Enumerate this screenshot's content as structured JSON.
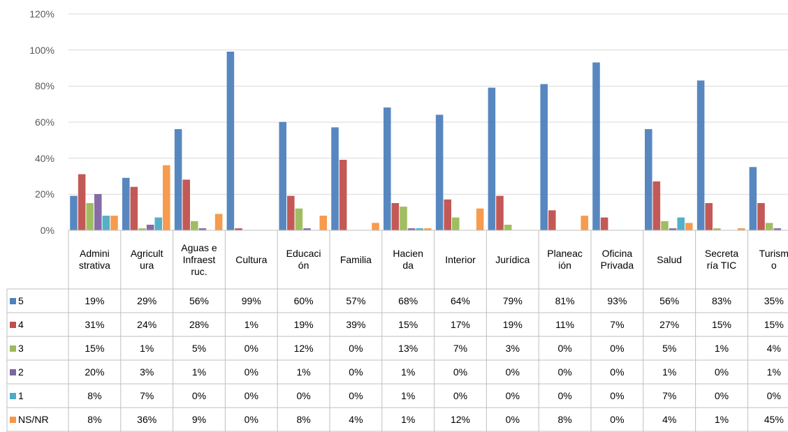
{
  "chart_data": {
    "type": "bar",
    "categories": [
      "Admini\nstrativa",
      "Agricult\nura",
      "Aguas e\nInfraest\nruc.",
      "Cultura",
      "Educaci\nón",
      "Familia",
      "Hacien\nda",
      "Interior",
      "Jurídica",
      "Planeac\nión",
      "Oficina\nPrivada",
      "Salud",
      "Secreta\nría TIC",
      "Turism\no"
    ],
    "series": [
      {
        "name": "5",
        "color": "#4f81bd",
        "values": [
          19,
          29,
          56,
          99,
          60,
          57,
          68,
          64,
          79,
          81,
          93,
          56,
          83,
          35
        ],
        "value_labels": [
          "19%",
          "29%",
          "56%",
          "99%",
          "60%",
          "57%",
          "68%",
          "64%",
          "79%",
          "81%",
          "93%",
          "56%",
          "83%",
          "35%"
        ]
      },
      {
        "name": "4",
        "color": "#c0504d",
        "values": [
          31,
          24,
          28,
          1,
          19,
          39,
          15,
          17,
          19,
          11,
          7,
          27,
          15,
          15
        ],
        "value_labels": [
          "31%",
          "24%",
          "28%",
          "1%",
          "19%",
          "39%",
          "15%",
          "17%",
          "19%",
          "11%",
          "7%",
          "27%",
          "15%",
          "15%"
        ]
      },
      {
        "name": "3",
        "color": "#9bbb59",
        "values": [
          15,
          1,
          5,
          0,
          12,
          0,
          13,
          7,
          3,
          0,
          0,
          5,
          1,
          4
        ],
        "value_labels": [
          "15%",
          "1%",
          "5%",
          "0%",
          "12%",
          "0%",
          "13%",
          "7%",
          "3%",
          "0%",
          "0%",
          "5%",
          "1%",
          "4%"
        ]
      },
      {
        "name": "2",
        "color": "#8064a2",
        "values": [
          20,
          3,
          1,
          0,
          1,
          0,
          1,
          0,
          0,
          0,
          0,
          1,
          0,
          1
        ],
        "value_labels": [
          "20%",
          "3%",
          "1%",
          "0%",
          "1%",
          "0%",
          "1%",
          "0%",
          "0%",
          "0%",
          "0%",
          "1%",
          "0%",
          "1%"
        ]
      },
      {
        "name": "1",
        "color": "#4bacc6",
        "values": [
          8,
          7,
          0,
          0,
          0,
          0,
          1,
          0,
          0,
          0,
          0,
          7,
          0,
          0
        ],
        "value_labels": [
          "8%",
          "7%",
          "0%",
          "0%",
          "0%",
          "0%",
          "1%",
          "0%",
          "0%",
          "0%",
          "0%",
          "7%",
          "0%",
          "0%"
        ]
      },
      {
        "name": "NS/NR",
        "color": "#f79646",
        "values": [
          8,
          36,
          9,
          0,
          8,
          4,
          1,
          12,
          0,
          8,
          0,
          4,
          1,
          45
        ],
        "value_labels": [
          "8%",
          "36%",
          "9%",
          "0%",
          "8%",
          "4%",
          "1%",
          "12%",
          "0%",
          "8%",
          "0%",
          "4%",
          "1%",
          "45%"
        ]
      }
    ],
    "ylim": [
      0,
      120
    ],
    "yticks": [
      {
        "value": 0,
        "label": "0%"
      },
      {
        "value": 20,
        "label": "20%"
      },
      {
        "value": 40,
        "label": "40%"
      },
      {
        "value": 60,
        "label": "60%"
      },
      {
        "value": 80,
        "label": "80%"
      },
      {
        "value": 100,
        "label": "100%"
      },
      {
        "value": 120,
        "label": "120%"
      }
    ],
    "grid": true
  }
}
